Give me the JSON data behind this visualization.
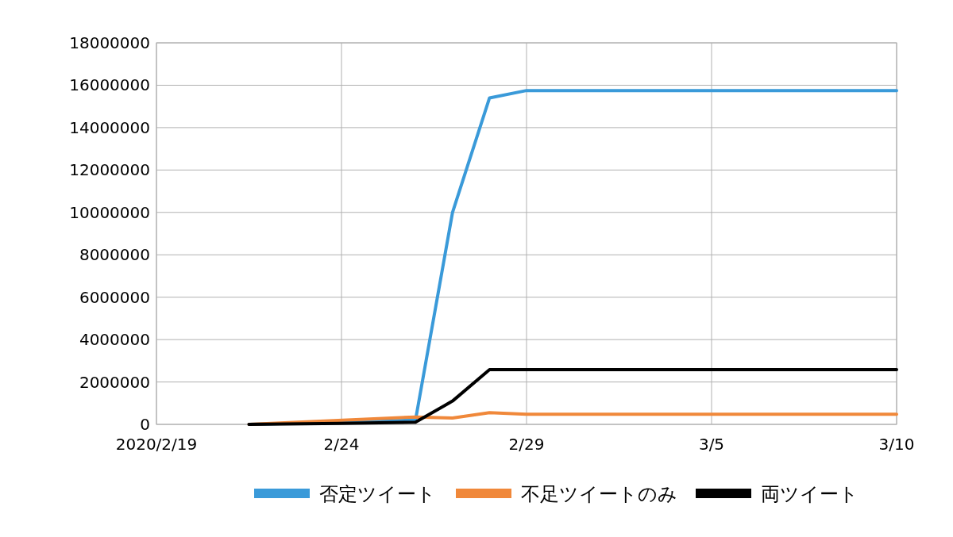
{
  "chart_data": {
    "type": "line",
    "xlim": [
      "2020-02-19",
      "2020-03-10"
    ],
    "xticks": [
      {
        "value": "2020-02-19",
        "label": "2020/2/19"
      },
      {
        "value": "2020-02-24",
        "label": "2/24"
      },
      {
        "value": "2020-02-29",
        "label": "2/29"
      },
      {
        "value": "2020-03-05",
        "label": "3/5"
      },
      {
        "value": "2020-03-10",
        "label": "3/10"
      }
    ],
    "ylim": [
      0,
      18000000
    ],
    "yticks": [
      0,
      2000000,
      4000000,
      6000000,
      8000000,
      10000000,
      12000000,
      14000000,
      16000000,
      18000000
    ],
    "grid": true,
    "legend": "bottom",
    "marker": "none",
    "line_style": "solid",
    "series": [
      {
        "name": "否定ツイート",
        "color": "#3a9ad9",
        "x": [
          "2020-02-21T12:00",
          "2020-02-26",
          "2020-02-27",
          "2020-02-28",
          "2020-02-29",
          "2020-03-10"
        ],
        "values": [
          0,
          200000,
          10000000,
          15400000,
          15750000,
          15750000
        ]
      },
      {
        "name": "不足ツイートのみ",
        "color": "#f0883a",
        "x": [
          "2020-02-21T12:00",
          "2020-02-26",
          "2020-02-27",
          "2020-02-28",
          "2020-02-29",
          "2020-03-10"
        ],
        "values": [
          0,
          350000,
          300000,
          550000,
          480000,
          480000
        ]
      },
      {
        "name": "両ツイート",
        "color": "#000000",
        "x": [
          "2020-02-21T12:00",
          "2020-02-24",
          "2020-02-26",
          "2020-02-27",
          "2020-02-28",
          "2020-02-29",
          "2020-03-10"
        ],
        "values": [
          0,
          50000,
          100000,
          1100000,
          2580000,
          2580000,
          2580000
        ]
      }
    ]
  }
}
